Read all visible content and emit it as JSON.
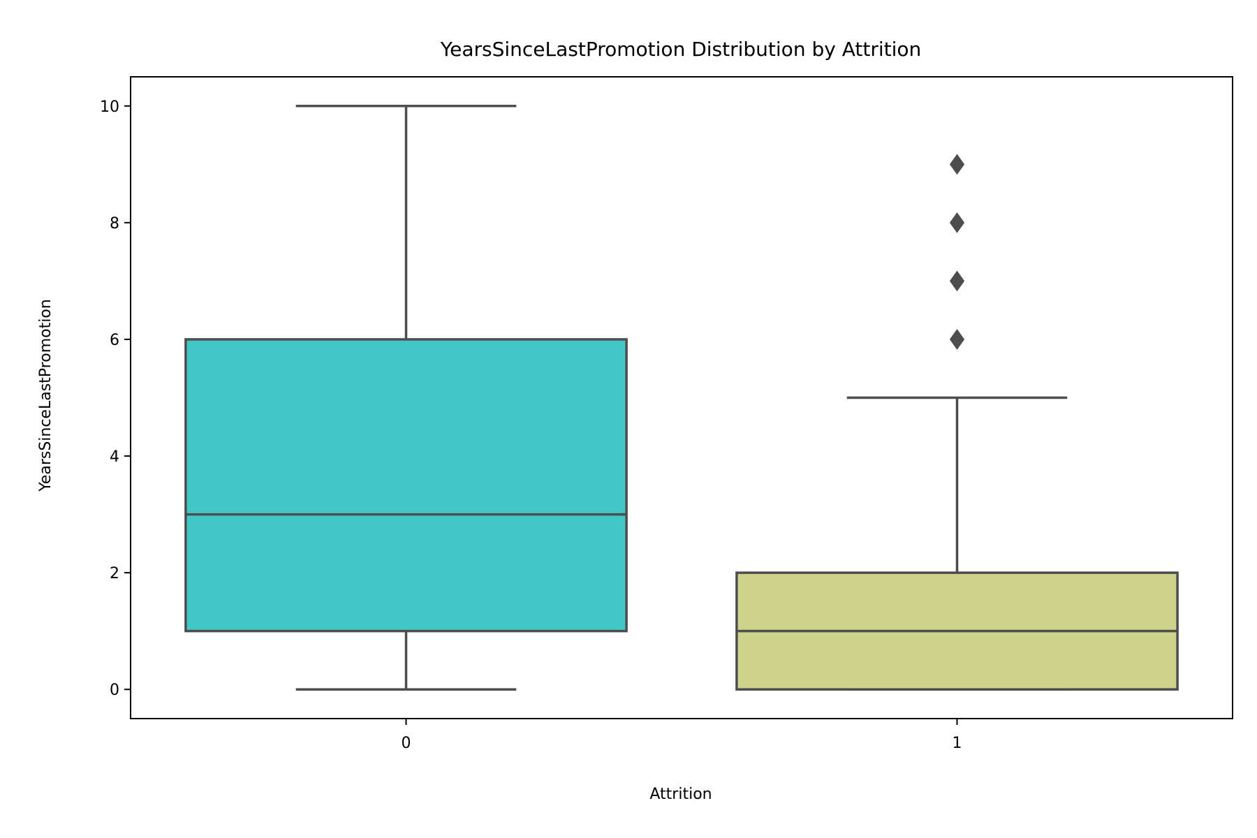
{
  "chart_data": {
    "type": "box",
    "title": "YearsSinceLastPromotion Distribution by Attrition",
    "xlabel": "Attrition",
    "ylabel": "YearsSinceLastPromotion",
    "categories": [
      "0",
      "1"
    ],
    "ylim": [
      -0.5,
      10.5
    ],
    "yticks": [
      0,
      2,
      4,
      6,
      8,
      10
    ],
    "grid": false,
    "legend": "none",
    "line_color": "#4d4d4d",
    "boxes": [
      {
        "category": "0",
        "min": 0,
        "q1": 1,
        "median": 3,
        "q3": 6,
        "max": 10,
        "outliers": [],
        "color": "#42c7c7"
      },
      {
        "category": "1",
        "min": 0,
        "q1": 0,
        "median": 1,
        "q3": 2,
        "max": 5,
        "outliers": [
          6,
          7,
          8,
          9
        ],
        "color": "#cdd38b"
      }
    ]
  }
}
